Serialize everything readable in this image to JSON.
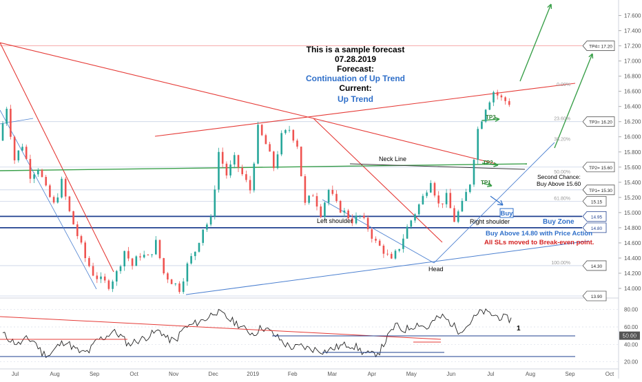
{
  "chart_data": {
    "type": "candlestick",
    "symbol_context": "daily price chart with oscillator sub-panel",
    "forecast_box": {
      "line1": "This is a sample forecast",
      "line2": "07.28.2019",
      "line3": "Forecast:",
      "line4": "Continuation of Up Trend",
      "line5": "Current:",
      "line6": "Up Trend"
    },
    "price_axis": {
      "ticks": [
        "17.600",
        "17.400",
        "17.200",
        "17.000",
        "16.800",
        "16.600",
        "16.400",
        "16.200",
        "16.000",
        "15.800",
        "15.600",
        "15.400",
        "15.200",
        "15.000",
        "14.800",
        "14.600",
        "14.400",
        "14.200",
        "14.000"
      ],
      "ylim": [
        13.9,
        17.75
      ]
    },
    "price_tags": [
      {
        "label": "TP4= 17.20",
        "value": 17.2
      },
      {
        "label": "TP3= 16.20",
        "value": 16.2
      },
      {
        "label": "TP2= 15.60",
        "value": 15.6
      },
      {
        "label": "TP1= 15.30",
        "value": 15.3
      },
      {
        "label": "15.15",
        "value": 15.15
      },
      {
        "label": "14.95",
        "value": 14.95
      },
      {
        "label": "14.80",
        "value": 14.8
      },
      {
        "label": "14.30",
        "value": 14.3
      },
      {
        "label": "13.90",
        "value": 13.9
      }
    ],
    "fib_levels": [
      {
        "label": "0.00%",
        "value": 16.65
      },
      {
        "label": "23.60%",
        "value": 16.2
      },
      {
        "label": "38.20%",
        "value": 15.93
      },
      {
        "label": "50.00%",
        "value": 15.5
      },
      {
        "label": "61.80%",
        "value": 15.15
      },
      {
        "label": "100.00%",
        "value": 14.3
      }
    ],
    "horizontal_levels": [
      17.2,
      16.2,
      15.6,
      15.3,
      15.15,
      14.95,
      14.8,
      14.3,
      13.9
    ],
    "annotations": {
      "neck_line": "Neck Line",
      "left_shoulder": "Left shoulder",
      "right_shoulder": "Right shoulder",
      "head": "Head",
      "buy_zone": "Buy Zone",
      "buy_above": "Buy Above 14.80 with Price Action",
      "sl_note": "All SLs moved to Break-even point.",
      "second_chance_1": "Second Chance:",
      "second_chance_2": "Buy Above 15.60",
      "buy": "Buy",
      "tp1": "TP1",
      "tp2": "TP2",
      "tp3": "TP3"
    },
    "x_axis": {
      "ticks": [
        "Jul",
        "Aug",
        "Sep",
        "Oct",
        "Nov",
        "Dec",
        "2019",
        "Feb",
        "Mar",
        "Apr",
        "May",
        "Jun",
        "Jul",
        "Aug",
        "Sep",
        "Oct"
      ]
    },
    "price_path": [
      15.95,
      16.4,
      15.7,
      15.9,
      15.5,
      15.6,
      15.3,
      15.1,
      15.4,
      15.0,
      14.7,
      14.4,
      14.2,
      14.1,
      14.05,
      14.2,
      14.5,
      14.3,
      14.45,
      14.4,
      14.6,
      14.2,
      14.1,
      14.0,
      14.3,
      14.5,
      14.8,
      14.9,
      15.8,
      15.5,
      15.7,
      15.5,
      15.3,
      16.1,
      15.9,
      15.6,
      16.0,
      16.1,
      15.9,
      15.1,
      15.25,
      15.0,
      15.3,
      15.1,
      15.0,
      14.9,
      14.95,
      14.8,
      14.6,
      14.5,
      14.35,
      14.55,
      14.8,
      15.0,
      15.2,
      15.45,
      15.1,
      15.2,
      14.9,
      15.1,
      15.4,
      16.1,
      16.4,
      16.6,
      16.5,
      16.45
    ],
    "oscillator": {
      "ticks": [
        "80.00",
        "60.00",
        "50.00",
        "40.00",
        "20.00"
      ],
      "ylim": [
        15,
        90
      ],
      "current_value": "50.00",
      "label": "1",
      "values": [
        52,
        45,
        40,
        46,
        44,
        30,
        28,
        38,
        44,
        36,
        30,
        32,
        45,
        48,
        55,
        50,
        40,
        44,
        47,
        52,
        56,
        46,
        44,
        58,
        62,
        66,
        70,
        78,
        74,
        68,
        63,
        56,
        52,
        60,
        55,
        48,
        40,
        36,
        38,
        35,
        34,
        32,
        35,
        38,
        40,
        37,
        30,
        28,
        32,
        48,
        62,
        56,
        60,
        64,
        58,
        68,
        72,
        65,
        56,
        60,
        70,
        78,
        75,
        72,
        70,
        68
      ]
    },
    "colors": {
      "up_candle": "#26a69a",
      "down_candle": "#ef5350",
      "blue_line": "#1e3f8f",
      "green_line": "#3aa04a",
      "red_line": "#e53935",
      "forecast_blue": "#2f6fc9",
      "trend_blue": "#4a7fd0",
      "red_text": "#d42020"
    }
  }
}
